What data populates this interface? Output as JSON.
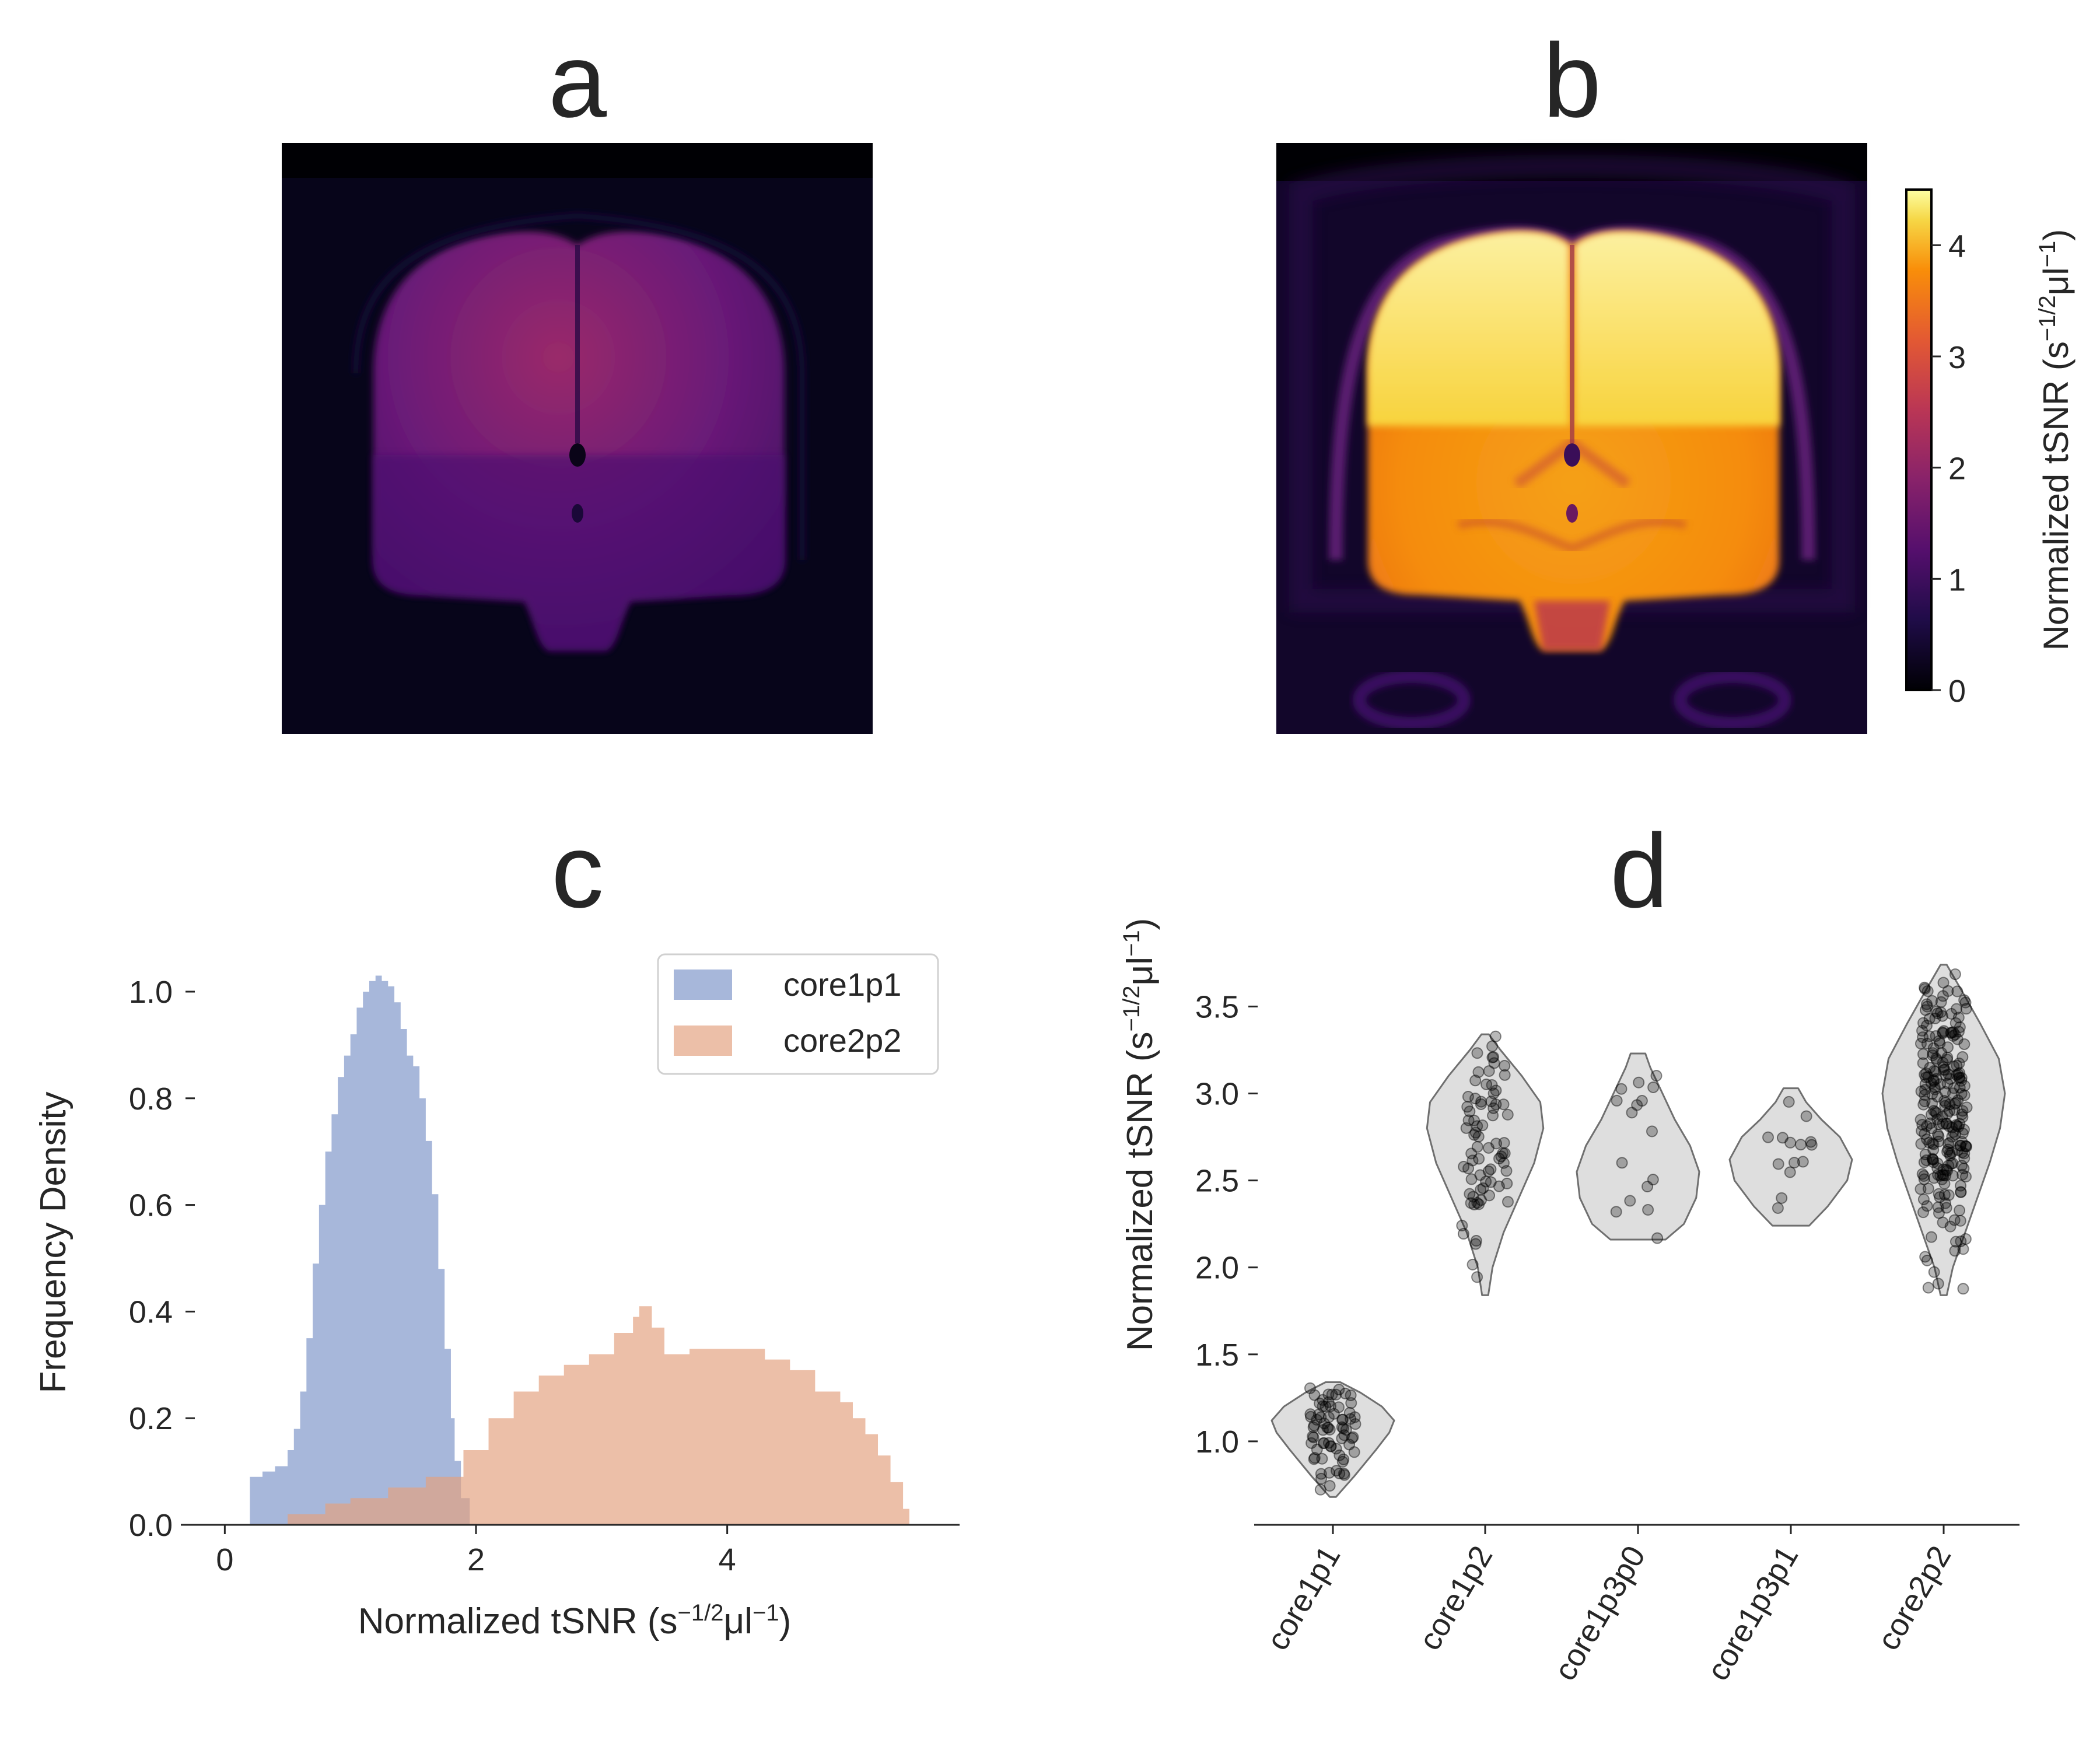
{
  "panels": {
    "a": {
      "letter": "a"
    },
    "b": {
      "letter": "b"
    },
    "c": {
      "letter": "c"
    },
    "d": {
      "letter": "d"
    }
  },
  "colorbar": {
    "label_main": "Normalized tSNR (s",
    "label_sup1": "−1/2",
    "label_mid": "μl",
    "label_sup2": "−1",
    "label_end": ")",
    "ticks": [
      "0",
      "1",
      "2",
      "3",
      "4"
    ],
    "range": [
      0,
      4.5
    ],
    "colormap": "inferno"
  },
  "chart_data": [
    {
      "panel": "c",
      "type": "area",
      "xlabel_main": "Normalized tSNR (s",
      "xlabel_sup1": "−1/2",
      "xlabel_mid": "μl",
      "xlabel_sup2": "−1",
      "xlabel_end": ")",
      "ylabel": "Frequency Density",
      "xlim": [
        -0.35,
        5.85
      ],
      "ylim": [
        0,
        1.07
      ],
      "xticks": [
        0,
        2,
        4
      ],
      "xticklabels": [
        "0",
        "2",
        "4"
      ],
      "yticks": [
        0.0,
        0.2,
        0.4,
        0.6,
        0.8,
        1.0
      ],
      "yticklabels": [
        "0.0",
        "0.2",
        "0.4",
        "0.6",
        "0.8",
        "1.0"
      ],
      "legend": {
        "position": "top-right"
      },
      "series": [
        {
          "name": "core1p1",
          "color": "#7d95c9",
          "opacity": 0.68,
          "x": [
            0.12,
            0.2,
            0.3,
            0.4,
            0.5,
            0.55,
            0.6,
            0.65,
            0.7,
            0.75,
            0.8,
            0.85,
            0.9,
            0.95,
            1.0,
            1.05,
            1.1,
            1.15,
            1.2,
            1.25,
            1.3,
            1.35,
            1.4,
            1.45,
            1.5,
            1.55,
            1.6,
            1.65,
            1.7,
            1.75,
            1.8,
            1.83,
            1.88,
            1.95
          ],
          "y": [
            0.0,
            0.09,
            0.1,
            0.11,
            0.14,
            0.18,
            0.25,
            0.35,
            0.49,
            0.6,
            0.7,
            0.77,
            0.84,
            0.88,
            0.92,
            0.97,
            1.0,
            1.02,
            1.03,
            1.02,
            1.01,
            0.98,
            0.93,
            0.88,
            0.86,
            0.8,
            0.72,
            0.62,
            0.48,
            0.33,
            0.2,
            0.12,
            0.05,
            0.0
          ]
        },
        {
          "name": "core2p2",
          "color": "#e3a17f",
          "opacity": 0.68,
          "x": [
            0.3,
            0.5,
            0.8,
            1.0,
            1.3,
            1.6,
            1.9,
            2.1,
            2.3,
            2.5,
            2.7,
            2.9,
            3.1,
            3.25,
            3.3,
            3.4,
            3.5,
            3.7,
            3.9,
            4.1,
            4.3,
            4.5,
            4.7,
            4.9,
            5.0,
            5.1,
            5.2,
            5.3,
            5.4,
            5.45
          ],
          "y": [
            0.0,
            0.02,
            0.04,
            0.05,
            0.07,
            0.09,
            0.14,
            0.2,
            0.25,
            0.28,
            0.3,
            0.32,
            0.36,
            0.39,
            0.41,
            0.37,
            0.32,
            0.33,
            0.33,
            0.33,
            0.31,
            0.29,
            0.25,
            0.23,
            0.2,
            0.17,
            0.13,
            0.08,
            0.03,
            0.0
          ]
        }
      ]
    },
    {
      "panel": "d",
      "type": "scatter",
      "subtype": "violin",
      "ylabel_main": "Normalized tSNR (s",
      "ylabel_sup1": "−1/2",
      "ylabel_mid": "μl",
      "ylabel_sup2": "−1",
      "ylabel_end": ")",
      "categories": [
        "core1p1",
        "core1p2",
        "core1p3p0",
        "core1p3p1",
        "core2p2"
      ],
      "ylim": [
        0.52,
        3.8
      ],
      "yticks": [
        1.0,
        1.5,
        2.0,
        2.5,
        3.0,
        3.5
      ],
      "yticklabels": [
        "1.0",
        "1.5",
        "2.0",
        "2.5",
        "3.0",
        "3.5"
      ],
      "violins": [
        {
          "category": "core1p1",
          "min": 0.68,
          "max": 1.34,
          "median": 1.1,
          "n": 70,
          "profile": [
            [
              0.68,
              0.05
            ],
            [
              0.8,
              0.35
            ],
            [
              0.95,
              0.7
            ],
            [
              1.05,
              0.92
            ],
            [
              1.12,
              1.0
            ],
            [
              1.2,
              0.8
            ],
            [
              1.28,
              0.45
            ],
            [
              1.34,
              0.12
            ]
          ]
        },
        {
          "category": "core1p2",
          "min": 1.84,
          "max": 3.34,
          "median": 2.72,
          "n": 75,
          "profile": [
            [
              1.84,
              0.05
            ],
            [
              2.0,
              0.12
            ],
            [
              2.2,
              0.3
            ],
            [
              2.4,
              0.55
            ],
            [
              2.6,
              0.8
            ],
            [
              2.8,
              0.95
            ],
            [
              2.95,
              0.9
            ],
            [
              3.1,
              0.6
            ],
            [
              3.25,
              0.25
            ],
            [
              3.34,
              0.06
            ]
          ]
        },
        {
          "category": "core1p3p0",
          "min": 2.16,
          "max": 3.23,
          "median": 2.6,
          "n": 16,
          "profile": [
            [
              2.16,
              0.45
            ],
            [
              2.25,
              0.75
            ],
            [
              2.4,
              0.95
            ],
            [
              2.55,
              1.0
            ],
            [
              2.7,
              0.85
            ],
            [
              2.85,
              0.6
            ],
            [
              3.0,
              0.4
            ],
            [
              3.15,
              0.2
            ],
            [
              3.23,
              0.12
            ]
          ]
        },
        {
          "category": "core1p3p1",
          "min": 2.24,
          "max": 3.03,
          "median": 2.62,
          "n": 14,
          "profile": [
            [
              2.24,
              0.3
            ],
            [
              2.35,
              0.6
            ],
            [
              2.5,
              0.92
            ],
            [
              2.62,
              1.0
            ],
            [
              2.75,
              0.8
            ],
            [
              2.85,
              0.5
            ],
            [
              2.95,
              0.25
            ],
            [
              3.03,
              0.12
            ]
          ]
        },
        {
          "category": "core2p2",
          "min": 1.84,
          "max": 3.74,
          "median": 2.9,
          "n": 240,
          "profile": [
            [
              1.84,
              0.05
            ],
            [
              2.0,
              0.15
            ],
            [
              2.2,
              0.35
            ],
            [
              2.4,
              0.55
            ],
            [
              2.6,
              0.75
            ],
            [
              2.8,
              0.92
            ],
            [
              3.0,
              1.0
            ],
            [
              3.2,
              0.9
            ],
            [
              3.4,
              0.6
            ],
            [
              3.6,
              0.28
            ],
            [
              3.74,
              0.05
            ]
          ]
        }
      ]
    }
  ]
}
